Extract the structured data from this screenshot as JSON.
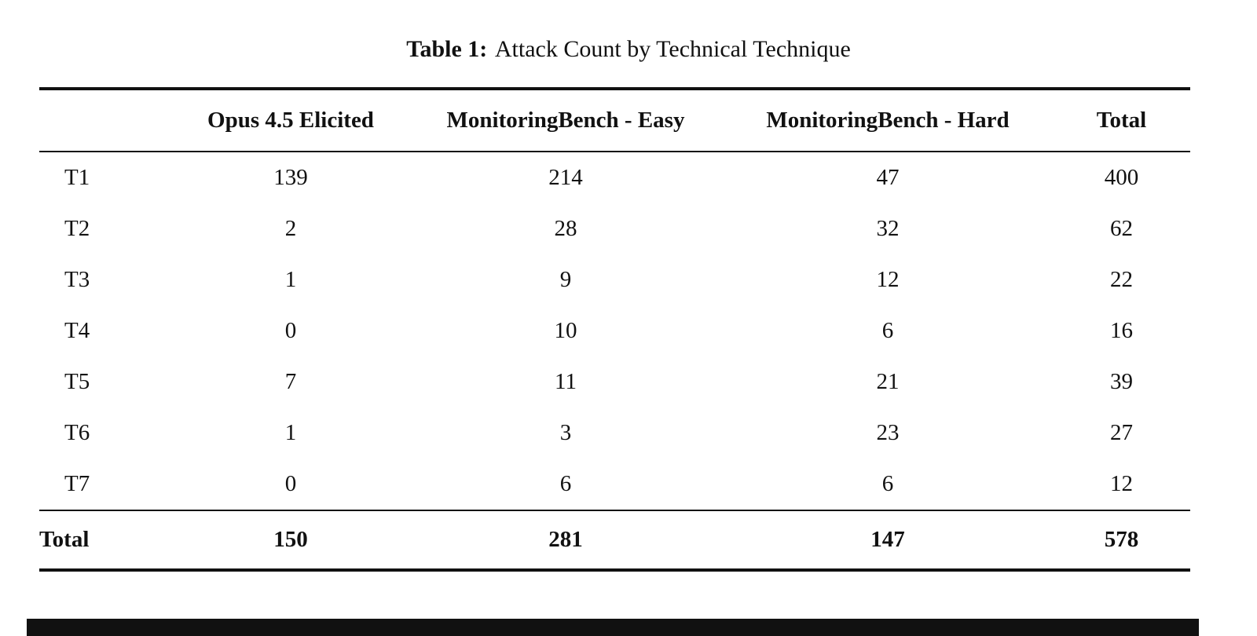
{
  "caption": {
    "label": "Table 1:",
    "title": "Attack Count by Technical Technique"
  },
  "table": {
    "columns": [
      "",
      "Opus 4.5 Elicited",
      "MonitoringBench - Easy",
      "MonitoringBench - Hard",
      "Total"
    ],
    "rows": [
      {
        "label": "T1",
        "values": [
          "139",
          "214",
          "47",
          "400"
        ]
      },
      {
        "label": "T2",
        "values": [
          "2",
          "28",
          "32",
          "62"
        ]
      },
      {
        "label": "T3",
        "values": [
          "1",
          "9",
          "12",
          "22"
        ]
      },
      {
        "label": "T4",
        "values": [
          "0",
          "10",
          "6",
          "16"
        ]
      },
      {
        "label": "T5",
        "values": [
          "7",
          "11",
          "21",
          "39"
        ]
      },
      {
        "label": "T6",
        "values": [
          "1",
          "3",
          "23",
          "27"
        ]
      },
      {
        "label": "T7",
        "values": [
          "0",
          "6",
          "6",
          "12"
        ]
      }
    ],
    "total_row": {
      "label": "Total",
      "values": [
        "150",
        "281",
        "147",
        "578"
      ]
    }
  },
  "chart_data": {
    "type": "table",
    "title": "Table 1: Attack Count by Technical Technique",
    "columns": [
      "Opus 4.5 Elicited",
      "MonitoringBench - Easy",
      "MonitoringBench - Hard",
      "Total"
    ],
    "row_labels": [
      "T1",
      "T2",
      "T3",
      "T4",
      "T5",
      "T6",
      "T7",
      "Total"
    ],
    "values": [
      [
        139,
        214,
        47,
        400
      ],
      [
        2,
        28,
        32,
        62
      ],
      [
        1,
        9,
        12,
        22
      ],
      [
        0,
        10,
        6,
        16
      ],
      [
        7,
        11,
        21,
        39
      ],
      [
        1,
        3,
        23,
        27
      ],
      [
        0,
        6,
        6,
        12
      ],
      [
        150,
        281,
        147,
        578
      ]
    ]
  }
}
